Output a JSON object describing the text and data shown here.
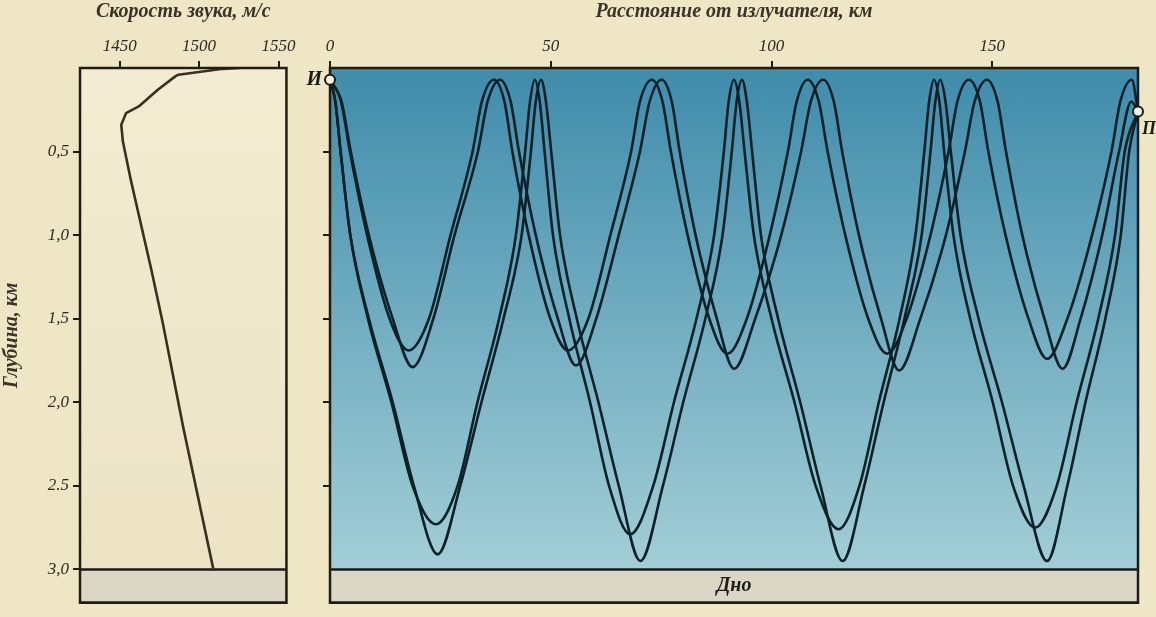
{
  "chart_data": [
    {
      "type": "line",
      "xlabel": "Скорость звука, м/с",
      "ylabel": "Глубина, км",
      "xlim": [
        1425,
        1555
      ],
      "ylim": [
        3.2,
        0
      ],
      "xticks": [
        1450,
        1500,
        1550
      ],
      "yticks": [
        {
          "value": 0.5,
          "label": "0,5"
        },
        {
          "value": 1.0,
          "label": "1,0"
        },
        {
          "value": 1.5,
          "label": "1,5"
        },
        {
          "value": 2.0,
          "label": "2,0"
        },
        {
          "value": 2.5,
          "label": "2.5"
        },
        {
          "value": 3.0,
          "label": "3,0"
        }
      ],
      "marker": "none",
      "legend": false,
      "bands": [
        {
          "axis": "y",
          "from": 3.0,
          "to": 3.2,
          "color": "#dcd6c4"
        }
      ],
      "series": [
        {
          "color": "#3a3020",
          "x": [
            1525,
            1515,
            1487,
            1485,
            1474,
            1462,
            1454,
            1451,
            1452,
            1457,
            1470,
            1477,
            1490,
            1509
          ],
          "values": [
            0,
            0.005,
            0.04,
            0.05,
            0.13,
            0.23,
            0.27,
            0.34,
            0.44,
            0.67,
            1.21,
            1.52,
            2.15,
            3.0
          ]
        }
      ]
    },
    {
      "type": "line",
      "xlabel": "Расстояние от излучателя, км",
      "xlim": [
        0,
        183
      ],
      "ylim": [
        3.2,
        0
      ],
      "xticks": [
        0,
        50,
        100,
        150
      ],
      "yticks": [
        {
          "value": 0.5,
          "label": null
        },
        {
          "value": 1.0,
          "label": null
        },
        {
          "value": 1.5,
          "label": null
        },
        {
          "value": 2.0,
          "label": null
        },
        {
          "value": 2.5,
          "label": null
        }
      ],
      "tick_labels": "x",
      "marker": "none",
      "legend": false,
      "bands": [
        {
          "axis": "y",
          "from": 3.0,
          "to": 3.2,
          "color": "#dcd6c4",
          "label": "Дно"
        }
      ],
      "annotations": [
        {
          "text": "И",
          "x": 0,
          "y": 0.07
        },
        {
          "text": "П",
          "x": 183,
          "y": 0.26
        }
      ],
      "series": [
        {
          "color": "#0d2128",
          "x": [
            0,
            2.5,
            4.5,
            8.4,
            13.5,
            17.8,
            22.4,
            27.3,
            32.3,
            34.4,
            37.1,
            39.5,
            41.3,
            45.0,
            49.9,
            53.9,
            58.5,
            63.5,
            68.2,
            70.2,
            72.9,
            75.3,
            77.2,
            81.0,
            85.9,
            90.0,
            94.4,
            99.6,
            103.7,
            105.7,
            108.2,
            110.7,
            112.7,
            116.7,
            121.9,
            126.2,
            130.6,
            136.0,
            140.1,
            142.1,
            144.7,
            147.2,
            149.1,
            153.0,
            158.2,
            162.4,
            167.0,
            172.6,
            177.0,
            179.0,
            181.6,
            183.0
          ],
          "values": [
            0.07,
            0.2,
            0.5,
            1.0,
            1.5,
            1.69,
            1.5,
            1.0,
            0.5,
            0.2,
            0.07,
            0.2,
            0.5,
            1.0,
            1.5,
            1.69,
            1.5,
            1.0,
            0.5,
            0.2,
            0.07,
            0.2,
            0.5,
            1.0,
            1.5,
            1.71,
            1.5,
            1.0,
            0.5,
            0.2,
            0.07,
            0.2,
            0.5,
            1.0,
            1.5,
            1.71,
            1.5,
            1.0,
            0.5,
            0.2,
            0.07,
            0.2,
            0.5,
            1.0,
            1.5,
            1.74,
            1.5,
            1.0,
            0.5,
            0.2,
            0.07,
            0.26
          ]
        },
        {
          "color": "#0d2128",
          "x": [
            0,
            2.6,
            4.7,
            8.8,
            14.2,
            18.7,
            23.4,
            28.2,
            33.5,
            35.7,
            38.5,
            40.9,
            42.8,
            46.6,
            51.6,
            55.7,
            60.3,
            65.4,
            70.2,
            72.4,
            75.1,
            77.4,
            79.2,
            82.8,
            87.6,
            91.5,
            96.3,
            102.2,
            106.7,
            108.9,
            111.7,
            114.1,
            116.0,
            119.8,
            124.8,
            128.9,
            133.7,
            139.5,
            143.8,
            146.0,
            148.8,
            151.2,
            153.1,
            156.8,
            161.8,
            165.9,
            170.0,
            174.9,
            178.7,
            181.5,
            183.0
          ],
          "values": [
            0.07,
            0.2,
            0.5,
            1.0,
            1.5,
            1.79,
            1.5,
            1.0,
            0.5,
            0.2,
            0.07,
            0.2,
            0.5,
            1.0,
            1.5,
            1.78,
            1.5,
            1.0,
            0.5,
            0.2,
            0.07,
            0.2,
            0.5,
            1.0,
            1.5,
            1.8,
            1.5,
            1.0,
            0.5,
            0.2,
            0.07,
            0.2,
            0.5,
            1.0,
            1.5,
            1.81,
            1.5,
            1.0,
            0.5,
            0.2,
            0.07,
            0.2,
            0.5,
            1.0,
            1.5,
            1.8,
            1.5,
            1.0,
            0.5,
            0.2,
            0.26
          ]
        },
        {
          "color": "#0d2128",
          "x": [
            0,
            1.2,
            2.4,
            4.6,
            8.6,
            13.9,
            18.7,
            24.0,
            28.9,
            33.4,
            38.3,
            42.1,
            44.2,
            45.3,
            46.4,
            47.5,
            48.6,
            50.5,
            54.2,
            58.9,
            63.2,
            68.0,
            73.2,
            77.9,
            83.0,
            87.0,
            89.2,
            90.3,
            91.5,
            92.7,
            93.9,
            96.0,
            100.0,
            105.2,
            110.0,
            115.2,
            119.9,
            124.3,
            129.0,
            132.6,
            134.6,
            135.7,
            136.8,
            138.0,
            139.1,
            141.2,
            145.0,
            150.1,
            154.7,
            159.7,
            164.6,
            169.1,
            174.0,
            177.8,
            180.0,
            183.0
          ],
          "values": [
            0.07,
            0.2,
            0.5,
            1.0,
            1.5,
            2.0,
            2.5,
            2.73,
            2.5,
            2.0,
            1.5,
            1.0,
            0.5,
            0.2,
            0.07,
            0.2,
            0.5,
            1.0,
            1.5,
            2.0,
            2.5,
            2.79,
            2.5,
            2.0,
            1.5,
            1.0,
            0.5,
            0.2,
            0.07,
            0.2,
            0.5,
            1.0,
            1.5,
            2.0,
            2.5,
            2.76,
            2.5,
            2.0,
            1.5,
            1.0,
            0.5,
            0.2,
            0.07,
            0.2,
            0.5,
            1.0,
            1.5,
            2.0,
            2.5,
            2.75,
            2.5,
            2.0,
            1.5,
            1.0,
            0.5,
            0.26
          ]
        },
        {
          "color": "#0d2128",
          "x": [
            0,
            1.2,
            2.4,
            4.6,
            8.8,
            14.2,
            19.0,
            24.4,
            29.5,
            34.3,
            39.3,
            43.4,
            45.5,
            46.6,
            47.8,
            48.9,
            50.1,
            52.1,
            55.9,
            60.8,
            65.4,
            70.3,
            75.4,
            80.0,
            85.0,
            88.9,
            91.0,
            92.1,
            93.3,
            94.4,
            95.6,
            97.6,
            101.5,
            106.5,
            111.1,
            116.1,
            121.0,
            125.4,
            130.1,
            134.0,
            136.0,
            137.1,
            138.2,
            139.4,
            140.6,
            142.8,
            146.9,
            152.2,
            157.1,
            162.4,
            167.0,
            171.1,
            175.6,
            179.1,
            181.0,
            183.0
          ],
          "values": [
            0.07,
            0.2,
            0.5,
            1.0,
            1.5,
            2.0,
            2.5,
            2.91,
            2.5,
            2.0,
            1.5,
            1.0,
            0.5,
            0.2,
            0.07,
            0.2,
            0.5,
            1.0,
            1.5,
            2.0,
            2.5,
            2.95,
            2.5,
            2.0,
            1.5,
            1.0,
            0.5,
            0.2,
            0.07,
            0.2,
            0.5,
            1.0,
            1.5,
            2.0,
            2.5,
            2.95,
            2.5,
            2.0,
            1.5,
            1.0,
            0.5,
            0.2,
            0.07,
            0.2,
            0.5,
            1.0,
            1.5,
            2.0,
            2.5,
            2.95,
            2.5,
            2.0,
            1.5,
            1.0,
            0.5,
            0.26
          ]
        }
      ]
    }
  ]
}
